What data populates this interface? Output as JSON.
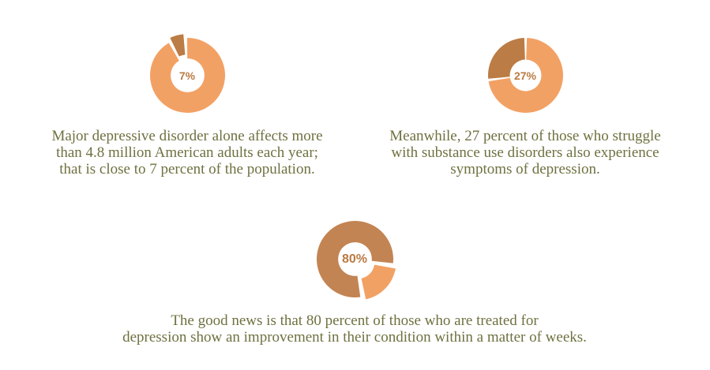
{
  "page": {
    "background": "#ffffff",
    "description": "Depression statistics infographic with three donut charts"
  },
  "colors": {
    "light_orange": "#F2A164",
    "dark_tan": "#BC7C45",
    "dark_tan_alt": "#C38453",
    "label_brown": "#BA7A42",
    "caption_olive": "#6F7140"
  },
  "chart_data": [
    {
      "type": "pie",
      "center_label": "7%",
      "center_label_color": "#BA7A42",
      "center_label_size": 14,
      "size": 95,
      "hole_ratio": 0.45,
      "start_angle": -28,
      "pad_angle": 2,
      "segments": [
        {
          "name": "affected",
          "value": 7,
          "color": "#BC7C45",
          "explode": 5
        },
        {
          "name": "remainder",
          "value": 93,
          "color": "#F2A164",
          "explode": 0
        }
      ]
    },
    {
      "type": "pie",
      "center_label": "27%",
      "center_label_color": "#BA7A42",
      "center_label_size": 14,
      "size": 95,
      "hole_ratio": 0.42,
      "start_angle": -97.2,
      "pad_angle": 2,
      "segments": [
        {
          "name": "affected",
          "value": 27,
          "color": "#BC7C45",
          "explode": 0
        },
        {
          "name": "remainder",
          "value": 73,
          "color": "#F2A164",
          "explode": 0
        }
      ]
    },
    {
      "type": "pie",
      "center_label": "80%",
      "center_label_color": "#BA7A42",
      "center_label_size": 16,
      "size": 97,
      "hole_ratio": 0.44,
      "start_angle": 170,
      "pad_angle": 2,
      "segments": [
        {
          "name": "improved",
          "value": 80,
          "color": "#C38453",
          "explode": 0
        },
        {
          "name": "remainder",
          "value": 20,
          "color": "#F2A164",
          "explode": 5
        }
      ]
    }
  ],
  "captions": [
    {
      "lines": [
        "Major depressive disorder alone affects more",
        "than 4.8 million American adults each year;",
        "that is close to 7 percent of the population."
      ]
    },
    {
      "lines": [
        "Meanwhile, 27 percent of those who struggle",
        "with substance use disorders also experience",
        "symptoms of depression."
      ]
    },
    {
      "lines": [
        "The good news is that 80 percent of those who are treated for",
        "depression show an improvement in their condition within a matter of weeks."
      ]
    }
  ]
}
